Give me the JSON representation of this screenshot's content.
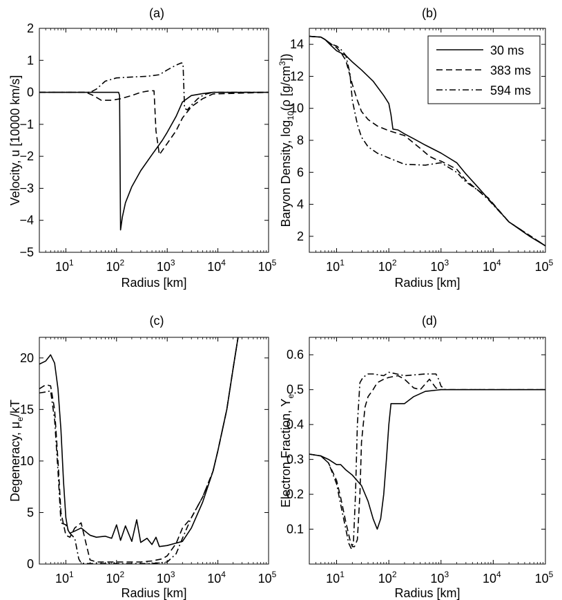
{
  "chart_data": [
    {
      "type": "line",
      "panel_label": "(a)",
      "xlabel": "Radius [km]",
      "ylabel": "Velocity, u [10000 km/s]",
      "xscale": "log",
      "xlim": [
        3,
        100000
      ],
      "ylim": [
        -5,
        2
      ],
      "xticks": [
        10,
        100,
        1000,
        10000,
        100000
      ],
      "xtick_labels": [
        "10",
        "10",
        "10",
        "10",
        "10"
      ],
      "xtick_exponents": [
        "1",
        "2",
        "3",
        "4",
        "5"
      ],
      "yticks": [
        -5,
        -4,
        -3,
        -2,
        -1,
        0,
        1,
        2
      ],
      "ytick_labels": [
        "−5",
        "−4",
        "−3",
        "−2",
        "−1",
        "0",
        "1",
        "2"
      ],
      "grid": false,
      "series": [
        {
          "name": "30 ms",
          "style": "solid",
          "x": [
            3,
            50,
            100,
            110,
            115,
            120,
            130,
            150,
            200,
            300,
            500,
            800,
            1000,
            1500,
            2000,
            3000,
            5000,
            8000,
            20000,
            100000
          ],
          "y": [
            0,
            0,
            0,
            0,
            -0.1,
            -4.3,
            -3.9,
            -3.45,
            -2.95,
            -2.45,
            -1.95,
            -1.5,
            -1.25,
            -0.75,
            -0.3,
            -0.1,
            -0.04,
            0,
            0,
            0
          ]
        },
        {
          "name": "383 ms",
          "style": "dashed",
          "x": [
            3,
            25,
            35,
            50,
            80,
            120,
            200,
            300,
            450,
            550,
            600,
            700,
            1000,
            1500,
            2000,
            3000,
            5000,
            8000,
            100000
          ],
          "y": [
            0,
            0,
            -0.1,
            -0.25,
            -0.25,
            -0.2,
            -0.1,
            0,
            0.05,
            0.05,
            -1.2,
            -1.95,
            -1.6,
            -1.2,
            -0.8,
            -0.45,
            -0.2,
            -0.05,
            0
          ]
        },
        {
          "name": "594 ms",
          "style": "dashdot",
          "x": [
            3,
            30,
            40,
            60,
            100,
            200,
            400,
            700,
            1000,
            1500,
            1900,
            2050,
            2200,
            2500,
            3000,
            4000,
            5000,
            6000,
            8000,
            100000
          ],
          "y": [
            0,
            0,
            0.1,
            0.35,
            0.45,
            0.48,
            0.5,
            0.55,
            0.7,
            0.85,
            0.92,
            0.9,
            -0.5,
            -0.55,
            -0.4,
            -0.2,
            -0.1,
            -0.05,
            0,
            0
          ]
        }
      ]
    },
    {
      "type": "line",
      "panel_label": "(b)",
      "xlabel": "Radius [km]",
      "ylabel": "Baryon Density, log10(ρ [g/cm3])",
      "ylabel_parts": [
        "Baryon Density, log",
        "10",
        "(ρ [g/cm",
        "3",
        "])"
      ],
      "xscale": "log",
      "xlim": [
        3,
        100000
      ],
      "ylim": [
        1,
        15
      ],
      "xticks": [
        10,
        100,
        1000,
        10000,
        100000
      ],
      "xtick_labels": [
        "10",
        "10",
        "10",
        "10",
        "10"
      ],
      "xtick_exponents": [
        "1",
        "2",
        "3",
        "4",
        "5"
      ],
      "yticks": [
        2,
        4,
        6,
        8,
        10,
        12,
        14
      ],
      "ytick_labels": [
        "2",
        "4",
        "6",
        "8",
        "10",
        "12",
        "14"
      ],
      "grid": false,
      "legend": {
        "location": "top-right",
        "entries": [
          "30 ms",
          "383 ms",
          "594 ms"
        ]
      },
      "series": [
        {
          "name": "30 ms",
          "style": "solid",
          "x": [
            3,
            5,
            6,
            8,
            10,
            15,
            20,
            30,
            50,
            80,
            100,
            110,
            120,
            150,
            200,
            300,
            500,
            1000,
            2000,
            3000,
            5000,
            10000,
            20000,
            50000,
            100000
          ],
          "y": [
            14.5,
            14.45,
            14.3,
            13.9,
            13.6,
            13.3,
            12.9,
            12.4,
            11.7,
            10.8,
            10.3,
            9.6,
            8.7,
            8.65,
            8.4,
            8.1,
            7.7,
            7.2,
            6.6,
            5.9,
            5.1,
            4.0,
            2.9,
            2.0,
            1.4
          ]
        },
        {
          "name": "383 ms",
          "style": "dashed",
          "x": [
            3,
            5,
            6,
            8,
            10,
            12,
            15,
            20,
            25,
            30,
            40,
            60,
            100,
            200,
            400,
            600,
            800,
            1000,
            2000,
            3000,
            5000,
            8000,
            20000,
            100000
          ],
          "y": [
            14.5,
            14.45,
            14.3,
            14.0,
            13.8,
            13.5,
            13.0,
            11.5,
            10.5,
            9.8,
            9.3,
            8.9,
            8.6,
            8.3,
            7.5,
            7.0,
            6.8,
            6.7,
            6.2,
            5.5,
            4.9,
            4.4,
            2.9,
            1.4
          ]
        },
        {
          "name": "594 ms",
          "style": "dashdot",
          "x": [
            3,
            5,
            6,
            8,
            10,
            12,
            15,
            18,
            20,
            25,
            30,
            40,
            60,
            100,
            200,
            500,
            1000,
            2000,
            3000,
            5000,
            8000,
            20000,
            100000
          ],
          "y": [
            14.5,
            14.45,
            14.3,
            14.0,
            13.9,
            13.7,
            13.3,
            12.2,
            10.5,
            9.0,
            8.2,
            7.6,
            7.2,
            6.9,
            6.5,
            6.45,
            6.6,
            6.0,
            5.4,
            4.9,
            4.3,
            2.9,
            1.4
          ]
        }
      ]
    },
    {
      "type": "line",
      "panel_label": "(c)",
      "xlabel": "Radius [km]",
      "ylabel": "Degeneracy, μe/kT",
      "ylabel_parts": [
        "Degeneracy, μ",
        "e",
        "/kT"
      ],
      "xscale": "log",
      "xlim": [
        3,
        100000
      ],
      "ylim": [
        0,
        22
      ],
      "xticks": [
        10,
        100,
        1000,
        10000,
        100000
      ],
      "xtick_labels": [
        "10",
        "10",
        "10",
        "10",
        "10"
      ],
      "xtick_exponents": [
        "1",
        "2",
        "3",
        "4",
        "5"
      ],
      "yticks": [
        0,
        5,
        10,
        15,
        20
      ],
      "ytick_labels": [
        "0",
        "5",
        "10",
        "15",
        "20"
      ],
      "grid": false,
      "series": [
        {
          "name": "30 ms",
          "style": "solid",
          "x": [
            3,
            4,
            5,
            6,
            7,
            8,
            9,
            10,
            11,
            12,
            15,
            20,
            30,
            40,
            60,
            80,
            100,
            120,
            150,
            200,
            250,
            300,
            400,
            500,
            600,
            700,
            1000,
            2000,
            3000,
            5000,
            8000,
            10000,
            15000,
            20000,
            25000
          ],
          "y": [
            19.4,
            19.7,
            20.3,
            19.5,
            17.0,
            13.0,
            8.0,
            4.5,
            3.3,
            3.0,
            3.2,
            3.5,
            2.8,
            2.6,
            2.7,
            2.5,
            3.8,
            2.3,
            3.7,
            2.2,
            4.3,
            2.1,
            2.5,
            1.9,
            2.6,
            1.7,
            1.8,
            2.2,
            3.5,
            6.0,
            9.0,
            11.0,
            15.0,
            19.0,
            22.0
          ]
        },
        {
          "name": "383 ms",
          "style": "dashed",
          "x": [
            3,
            4,
            5,
            6,
            7,
            8,
            10,
            12,
            15,
            20,
            25,
            30,
            40,
            60,
            100,
            200,
            300,
            500,
            800,
            1000,
            1500,
            2000,
            3000,
            5000,
            8000,
            10000,
            15000,
            20000,
            25000
          ],
          "y": [
            17.0,
            17.4,
            17.3,
            15.0,
            10.0,
            5.0,
            2.8,
            2.6,
            3.5,
            4.0,
            2.0,
            0.4,
            0.2,
            0.2,
            0.2,
            0.2,
            0.2,
            0.3,
            0.5,
            0.8,
            2.0,
            3.5,
            4.5,
            6.5,
            9.0,
            11.0,
            15.0,
            19.0,
            22.0
          ]
        },
        {
          "name": "594 ms",
          "style": "dashdot",
          "x": [
            3,
            4,
            5,
            6,
            7,
            8,
            10,
            12,
            15,
            18,
            20,
            25,
            30,
            40,
            60,
            100,
            200,
            500,
            1000,
            1500,
            2000,
            3000,
            5000,
            8000,
            10000,
            15000,
            20000,
            25000
          ],
          "y": [
            16.6,
            16.7,
            16.8,
            14.0,
            9.0,
            4.0,
            3.8,
            3.0,
            2.5,
            0.5,
            0.1,
            0.05,
            0.05,
            0.05,
            0.05,
            0.05,
            0.05,
            0.05,
            0.2,
            1.0,
            2.5,
            4.5,
            6.5,
            9.0,
            11.0,
            15.0,
            19.0,
            22.0
          ]
        }
      ]
    },
    {
      "type": "line",
      "panel_label": "(d)",
      "xlabel": "Radius [km]",
      "ylabel": "Electron Fraction, Ye",
      "ylabel_parts": [
        "Electron Fraction, Y",
        "e"
      ],
      "xscale": "log",
      "xlim": [
        3,
        100000
      ],
      "ylim": [
        0,
        0.65
      ],
      "xticks": [
        10,
        100,
        1000,
        10000,
        100000
      ],
      "xtick_labels": [
        "10",
        "10",
        "10",
        "10",
        "10"
      ],
      "xtick_exponents": [
        "1",
        "2",
        "3",
        "4",
        "5"
      ],
      "yticks": [
        0.1,
        0.2,
        0.3,
        0.4,
        0.5,
        0.6
      ],
      "ytick_labels": [
        "0.1",
        "0.2",
        "0.3",
        "0.4",
        "0.5",
        "0.6"
      ],
      "grid": false,
      "series": [
        {
          "name": "30 ms",
          "style": "solid",
          "x": [
            3,
            5,
            7,
            10,
            12,
            15,
            20,
            30,
            40,
            50,
            60,
            70,
            80,
            90,
            100,
            110,
            150,
            200,
            300,
            500,
            1000,
            2000,
            10000,
            100000
          ],
          "y": [
            0.315,
            0.31,
            0.3,
            0.285,
            0.285,
            0.27,
            0.255,
            0.225,
            0.18,
            0.13,
            0.1,
            0.13,
            0.2,
            0.3,
            0.4,
            0.46,
            0.46,
            0.46,
            0.48,
            0.495,
            0.5,
            0.5,
            0.5,
            0.5
          ]
        },
        {
          "name": "383 ms",
          "style": "dashed",
          "x": [
            3,
            5,
            7,
            10,
            12,
            15,
            18,
            20,
            22,
            25,
            28,
            30,
            35,
            40,
            50,
            60,
            80,
            100,
            150,
            200,
            300,
            400,
            600,
            800,
            1000,
            2000,
            100000
          ],
          "y": [
            0.315,
            0.31,
            0.29,
            0.24,
            0.19,
            0.12,
            0.07,
            0.05,
            0.05,
            0.07,
            0.2,
            0.35,
            0.45,
            0.48,
            0.5,
            0.52,
            0.53,
            0.535,
            0.54,
            0.53,
            0.505,
            0.5,
            0.53,
            0.505,
            0.5,
            0.5,
            0.5
          ]
        },
        {
          "name": "594 ms",
          "style": "dashdot",
          "x": [
            3,
            5,
            7,
            10,
            12,
            15,
            17,
            19,
            21,
            23,
            25,
            28,
            32,
            40,
            50,
            80,
            100,
            200,
            500,
            800,
            900,
            1000,
            1200,
            2000,
            100000
          ],
          "y": [
            0.315,
            0.31,
            0.29,
            0.23,
            0.17,
            0.1,
            0.06,
            0.045,
            0.06,
            0.2,
            0.4,
            0.52,
            0.535,
            0.545,
            0.545,
            0.54,
            0.55,
            0.54,
            0.545,
            0.545,
            0.53,
            0.51,
            0.5,
            0.5,
            0.5
          ]
        }
      ]
    }
  ]
}
